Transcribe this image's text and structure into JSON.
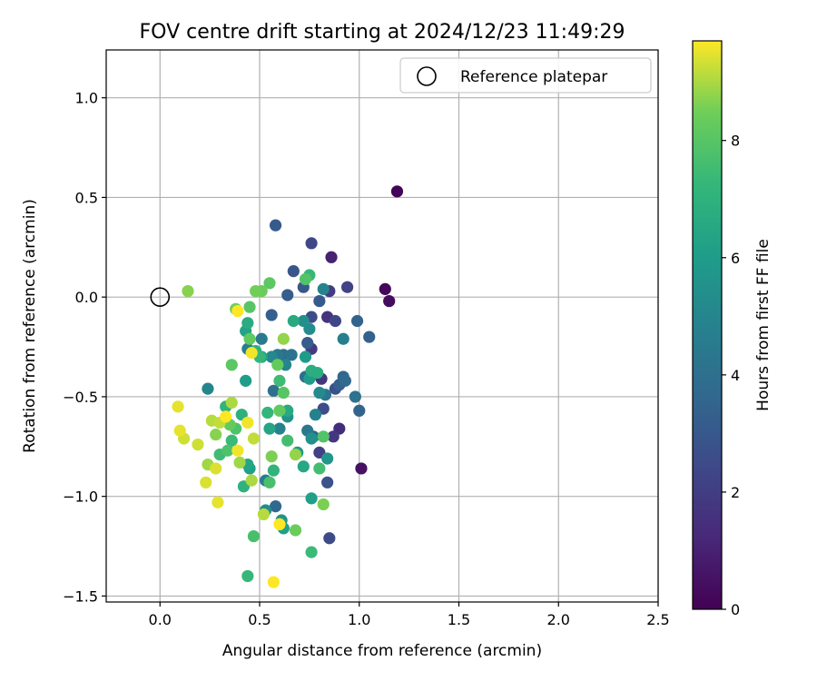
{
  "chart_data": {
    "type": "scatter",
    "title": "FOV centre drift starting at 2024/12/23 11:49:29",
    "xlabel": "Angular distance from reference (arcmin)",
    "ylabel": "Rotation from reference (arcmin)",
    "xlim": [
      -0.27,
      2.5
    ],
    "ylim": [
      -1.53,
      1.24
    ],
    "xticks": [
      0.0,
      0.5,
      1.0,
      1.5,
      2.0,
      2.5
    ],
    "xtick_labels": [
      "0.0",
      "0.5",
      "1.0",
      "1.5",
      "2.0",
      "2.5"
    ],
    "yticks": [
      -1.5,
      -1.0,
      -0.5,
      0.0,
      0.5,
      1.0
    ],
    "ytick_labels": [
      "−1.5",
      "−1.0",
      "−0.5",
      "0.0",
      "0.5",
      "1.0"
    ],
    "grid": true,
    "legend": {
      "placement": "top-right",
      "entries": [
        "Reference platepar"
      ]
    },
    "reference_point": {
      "name": "Reference platepar",
      "x": 0.0,
      "y": 0.0
    },
    "colorbar": {
      "label": "Hours from first FF file",
      "range": [
        0,
        9.7
      ],
      "ticks": [
        0,
        2,
        4,
        6,
        8
      ],
      "tick_labels": [
        "0",
        "2",
        "4",
        "6",
        "8"
      ],
      "colormap": "viridis"
    },
    "points": [
      {
        "x": 1.19,
        "y": 0.53,
        "c": 0.1
      },
      {
        "x": 1.13,
        "y": 0.04,
        "c": 0.2
      },
      {
        "x": 1.15,
        "y": -0.02,
        "c": 0.3
      },
      {
        "x": 1.01,
        "y": -0.86,
        "c": 0.5
      },
      {
        "x": 0.86,
        "y": 0.2,
        "c": 1.0
      },
      {
        "x": 0.9,
        "y": -0.66,
        "c": 1.4
      },
      {
        "x": 0.84,
        "y": -0.1,
        "c": 1.6
      },
      {
        "x": 0.81,
        "y": -0.41,
        "c": 1.7
      },
      {
        "x": 0.87,
        "y": -0.7,
        "c": 1.8
      },
      {
        "x": 0.76,
        "y": -0.26,
        "c": 1.9
      },
      {
        "x": 0.85,
        "y": 0.03,
        "c": 2.0
      },
      {
        "x": 0.8,
        "y": -0.78,
        "c": 2.1
      },
      {
        "x": 0.94,
        "y": 0.05,
        "c": 2.2
      },
      {
        "x": 0.88,
        "y": -0.12,
        "c": 2.3
      },
      {
        "x": 0.76,
        "y": 0.27,
        "c": 2.4
      },
      {
        "x": 0.85,
        "y": -1.21,
        "c": 2.5
      },
      {
        "x": 0.76,
        "y": -0.1,
        "c": 2.5
      },
      {
        "x": 0.82,
        "y": -0.56,
        "c": 2.6
      },
      {
        "x": 0.88,
        "y": -0.46,
        "c": 2.7
      },
      {
        "x": 0.84,
        "y": -0.93,
        "c": 2.8
      },
      {
        "x": 0.67,
        "y": 0.13,
        "c": 2.9
      },
      {
        "x": 0.72,
        "y": 0.05,
        "c": 3.0
      },
      {
        "x": 0.8,
        "y": -0.02,
        "c": 3.1
      },
      {
        "x": 0.58,
        "y": 0.36,
        "c": 3.1
      },
      {
        "x": 0.64,
        "y": 0.01,
        "c": 3.2
      },
      {
        "x": 0.74,
        "y": -0.23,
        "c": 3.2
      },
      {
        "x": 0.9,
        "y": -0.44,
        "c": 3.3
      },
      {
        "x": 0.56,
        "y": -0.09,
        "c": 3.3
      },
      {
        "x": 0.99,
        "y": -0.12,
        "c": 3.4
      },
      {
        "x": 1.05,
        "y": -0.2,
        "c": 3.4
      },
      {
        "x": 1.0,
        "y": -0.57,
        "c": 3.5
      },
      {
        "x": 0.92,
        "y": -0.4,
        "c": 3.6
      },
      {
        "x": 0.77,
        "y": -0.7,
        "c": 3.6
      },
      {
        "x": 0.58,
        "y": -1.05,
        "c": 3.7
      },
      {
        "x": 0.93,
        "y": -0.42,
        "c": 3.8
      },
      {
        "x": 0.62,
        "y": -0.29,
        "c": 3.9
      },
      {
        "x": 0.73,
        "y": -0.4,
        "c": 3.9
      },
      {
        "x": 0.57,
        "y": -0.47,
        "c": 4.0
      },
      {
        "x": 0.98,
        "y": -0.5,
        "c": 4.1
      },
      {
        "x": 0.66,
        "y": -0.29,
        "c": 4.2
      },
      {
        "x": 0.83,
        "y": -0.49,
        "c": 4.3
      },
      {
        "x": 0.59,
        "y": -0.29,
        "c": 4.4
      },
      {
        "x": 0.74,
        "y": -0.67,
        "c": 4.4
      },
      {
        "x": 0.51,
        "y": -0.21,
        "c": 4.5
      },
      {
        "x": 0.44,
        "y": -0.26,
        "c": 4.6
      },
      {
        "x": 0.53,
        "y": -0.92,
        "c": 4.6
      },
      {
        "x": 0.92,
        "y": -0.21,
        "c": 4.7
      },
      {
        "x": 0.6,
        "y": -0.66,
        "c": 4.8
      },
      {
        "x": 0.78,
        "y": -0.59,
        "c": 4.8
      },
      {
        "x": 0.82,
        "y": 0.04,
        "c": 4.9
      },
      {
        "x": 0.63,
        "y": -0.34,
        "c": 5.0
      },
      {
        "x": 0.24,
        "y": -0.46,
        "c": 5.0
      },
      {
        "x": 0.56,
        "y": -0.3,
        "c": 5.1
      },
      {
        "x": 0.8,
        "y": -0.48,
        "c": 5.2
      },
      {
        "x": 0.53,
        "y": -1.07,
        "c": 5.3
      },
      {
        "x": 0.75,
        "y": -0.16,
        "c": 5.3
      },
      {
        "x": 0.72,
        "y": -0.12,
        "c": 5.4
      },
      {
        "x": 0.76,
        "y": -0.71,
        "c": 5.5
      },
      {
        "x": 0.64,
        "y": -0.6,
        "c": 5.6
      },
      {
        "x": 0.61,
        "y": -1.12,
        "c": 5.6
      },
      {
        "x": 0.84,
        "y": -0.81,
        "c": 5.7
      },
      {
        "x": 0.69,
        "y": -0.78,
        "c": 5.8
      },
      {
        "x": 0.75,
        "y": -0.41,
        "c": 5.9
      },
      {
        "x": 0.73,
        "y": -0.3,
        "c": 5.9
      },
      {
        "x": 0.43,
        "y": -0.42,
        "c": 6.0
      },
      {
        "x": 0.45,
        "y": -0.86,
        "c": 6.1
      },
      {
        "x": 0.76,
        "y": -1.01,
        "c": 6.1
      },
      {
        "x": 0.62,
        "y": -1.16,
        "c": 6.2
      },
      {
        "x": 0.43,
        "y": -0.17,
        "c": 6.3
      },
      {
        "x": 0.51,
        "y": -0.3,
        "c": 6.3
      },
      {
        "x": 0.44,
        "y": -0.84,
        "c": 6.4
      },
      {
        "x": 0.55,
        "y": -0.66,
        "c": 6.4
      },
      {
        "x": 0.72,
        "y": -0.85,
        "c": 6.5
      },
      {
        "x": 0.64,
        "y": -0.57,
        "c": 6.6
      },
      {
        "x": 0.67,
        "y": -0.12,
        "c": 6.6
      },
      {
        "x": 0.44,
        "y": -0.13,
        "c": 6.7
      },
      {
        "x": 0.76,
        "y": -0.37,
        "c": 6.8
      },
      {
        "x": 0.79,
        "y": -0.38,
        "c": 6.8
      },
      {
        "x": 0.41,
        "y": -0.59,
        "c": 6.9
      },
      {
        "x": 0.42,
        "y": -0.95,
        "c": 7.0
      },
      {
        "x": 0.48,
        "y": -0.27,
        "c": 7.0
      },
      {
        "x": 0.33,
        "y": -0.55,
        "c": 7.1
      },
      {
        "x": 0.57,
        "y": -0.87,
        "c": 7.1
      },
      {
        "x": 0.5,
        "y": -0.3,
        "c": 7.2
      },
      {
        "x": 0.54,
        "y": -0.58,
        "c": 7.2
      },
      {
        "x": 0.75,
        "y": 0.11,
        "c": 7.3
      },
      {
        "x": 0.44,
        "y": -1.4,
        "c": 7.3
      },
      {
        "x": 0.76,
        "y": -1.28,
        "c": 7.4
      },
      {
        "x": 0.36,
        "y": -0.72,
        "c": 7.4
      },
      {
        "x": 0.6,
        "y": -0.42,
        "c": 7.5
      },
      {
        "x": 0.3,
        "y": -0.79,
        "c": 7.5
      },
      {
        "x": 0.8,
        "y": -0.86,
        "c": 7.6
      },
      {
        "x": 0.64,
        "y": -0.72,
        "c": 7.6
      },
      {
        "x": 0.47,
        "y": -1.2,
        "c": 7.7
      },
      {
        "x": 0.55,
        "y": -0.93,
        "c": 7.7
      },
      {
        "x": 0.38,
        "y": -0.66,
        "c": 7.8
      },
      {
        "x": 0.34,
        "y": -0.77,
        "c": 7.8
      },
      {
        "x": 0.73,
        "y": 0.09,
        "c": 7.9
      },
      {
        "x": 0.82,
        "y": -0.7,
        "c": 7.9
      },
      {
        "x": 0.62,
        "y": -0.48,
        "c": 8.0
      },
      {
        "x": 0.45,
        "y": -0.05,
        "c": 8.0
      },
      {
        "x": 0.55,
        "y": 0.07,
        "c": 8.1
      },
      {
        "x": 0.36,
        "y": -0.34,
        "c": 8.1
      },
      {
        "x": 0.6,
        "y": -0.57,
        "c": 8.2
      },
      {
        "x": 0.45,
        "y": -0.21,
        "c": 8.2
      },
      {
        "x": 0.59,
        "y": -0.34,
        "c": 8.3
      },
      {
        "x": 0.35,
        "y": -0.64,
        "c": 8.3
      },
      {
        "x": 0.51,
        "y": 0.03,
        "c": 8.4
      },
      {
        "x": 0.68,
        "y": -1.17,
        "c": 8.4
      },
      {
        "x": 0.38,
        "y": -0.06,
        "c": 8.5
      },
      {
        "x": 0.48,
        "y": 0.03,
        "c": 8.5
      },
      {
        "x": 0.82,
        "y": -1.04,
        "c": 8.6
      },
      {
        "x": 0.56,
        "y": -0.8,
        "c": 8.6
      },
      {
        "x": 0.14,
        "y": 0.03,
        "c": 8.7
      },
      {
        "x": 0.28,
        "y": -0.69,
        "c": 8.7
      },
      {
        "x": 0.62,
        "y": -0.21,
        "c": 8.8
      },
      {
        "x": 0.68,
        "y": -0.79,
        "c": 8.8
      },
      {
        "x": 0.4,
        "y": -0.83,
        "c": 8.9
      },
      {
        "x": 0.24,
        "y": -0.84,
        "c": 8.9
      },
      {
        "x": 0.46,
        "y": -0.92,
        "c": 9.0
      },
      {
        "x": 0.36,
        "y": -0.53,
        "c": 9.0
      },
      {
        "x": 0.26,
        "y": -0.62,
        "c": 9.1
      },
      {
        "x": 0.52,
        "y": -1.09,
        "c": 9.1
      },
      {
        "x": 0.3,
        "y": -0.63,
        "c": 9.2
      },
      {
        "x": 0.47,
        "y": -0.71,
        "c": 9.2
      },
      {
        "x": 0.12,
        "y": -0.71,
        "c": 9.3
      },
      {
        "x": 0.19,
        "y": -0.74,
        "c": 9.3
      },
      {
        "x": 0.28,
        "y": -0.86,
        "c": 9.4
      },
      {
        "x": 0.23,
        "y": -0.93,
        "c": 9.4
      },
      {
        "x": 0.29,
        "y": -1.03,
        "c": 9.5
      },
      {
        "x": 0.09,
        "y": -0.55,
        "c": 9.5
      },
      {
        "x": 0.1,
        "y": -0.67,
        "c": 9.5
      },
      {
        "x": 0.39,
        "y": -0.77,
        "c": 9.6
      },
      {
        "x": 0.44,
        "y": -0.63,
        "c": 9.6
      },
      {
        "x": 0.46,
        "y": -0.28,
        "c": 9.6
      },
      {
        "x": 0.57,
        "y": -1.43,
        "c": 9.7
      },
      {
        "x": 0.6,
        "y": -1.14,
        "c": 9.7
      },
      {
        "x": 0.33,
        "y": -0.6,
        "c": 9.7
      },
      {
        "x": 0.39,
        "y": -0.07,
        "c": 9.7
      }
    ]
  }
}
